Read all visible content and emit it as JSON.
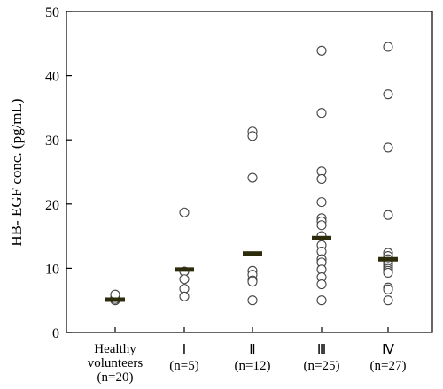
{
  "chart_data": {
    "type": "scatter",
    "ylabel": "HB- EGF conc. (pg/mL)",
    "ylim": [
      0,
      50
    ],
    "yticks": [
      0,
      10,
      20,
      30,
      40,
      50
    ],
    "grid": false,
    "categories": [
      [
        "Healthy",
        "volunteers",
        "(n=20)"
      ],
      [
        "Ⅰ",
        "(n=5)"
      ],
      [
        "Ⅱ",
        "(n=12)"
      ],
      [
        "Ⅲ",
        "(n=25)"
      ],
      [
        "Ⅳ",
        "(n=27)"
      ]
    ],
    "series": [
      {
        "points": [
          5.0,
          5.2,
          5.5,
          5.9
        ],
        "median": 5.1
      },
      {
        "points": [
          18.7,
          9.5,
          8.3,
          6.8,
          5.6
        ],
        "median": 9.8
      },
      {
        "points": [
          31.3,
          30.6,
          24.1,
          9.6,
          9.0,
          8.1,
          7.9,
          5.0
        ],
        "median": 12.3
      },
      {
        "points": [
          43.9,
          34.2,
          25.1,
          23.9,
          20.3,
          17.8,
          17.3,
          16.7,
          15.0,
          13.6,
          12.6,
          11.4,
          10.9,
          9.8,
          8.6,
          7.5,
          5.0
        ],
        "median": 14.7
      },
      {
        "points": [
          44.5,
          37.1,
          28.8,
          18.3,
          12.4,
          11.9,
          11.4,
          11.0,
          10.6,
          10.2,
          9.9,
          9.6,
          9.3,
          7.0,
          6.7,
          5.0
        ],
        "median": 11.4
      }
    ],
    "median_color": "#2c2c0c",
    "marker_color": "#444444"
  }
}
